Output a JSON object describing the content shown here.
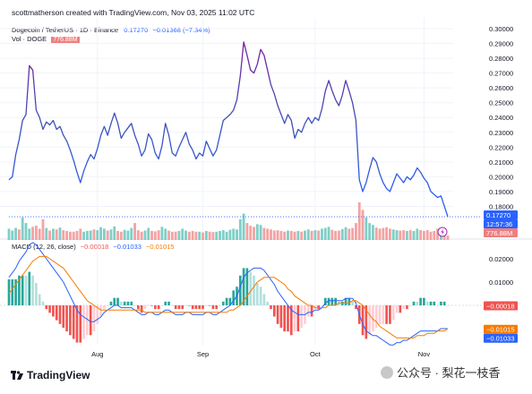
{
  "header": {
    "credit": "scottmatherson created with TradingView.com, Nov 03, 2025 11:02 UTC"
  },
  "symbol": {
    "name": "Dogecoin / TetherUS · 1D · Binance",
    "price": "0.17270",
    "change": "−0.01368 (−7.34%)"
  },
  "volume": {
    "label": "Vol · DOGE",
    "value": "776.88M"
  },
  "macd": {
    "label": "MACD (12, 26, close)",
    "hist": "−0.00018",
    "macd_value": "−0.01033",
    "signal_value": "−0.01015"
  },
  "price_axis": {
    "ticks": [
      "0.30000",
      "0.29000",
      "0.28000",
      "0.27000",
      "0.26000",
      "0.25000",
      "0.24000",
      "0.23000",
      "0.22000",
      "0.21000",
      "0.20000",
      "0.19000",
      "0.18000"
    ],
    "current_price_tag": "0.17270",
    "countdown_tag": "12:57:36",
    "volume_tag": "776.88M"
  },
  "macd_axis": {
    "ticks": [
      "0.02000",
      "0.01000"
    ],
    "hist_tag": "−0.00018",
    "signal_tag": "−0.01015",
    "macd_tag": "−0.01033"
  },
  "time_axis": {
    "labels": [
      "Aug",
      "Sep",
      "Oct",
      "Nov"
    ]
  },
  "branding": {
    "logo": "TradingView",
    "watermark": "公众号 · 梨花一枝香"
  },
  "colors": {
    "up": "#26a69a",
    "down": "#ef5350",
    "macd_line": "#2962ff",
    "signal_line": "#f57c00",
    "price_line": "#2962ff",
    "price_line_high": "#7b1fa2"
  },
  "chart_data": {
    "type": "line",
    "symbol": "DOGEUSDT",
    "interval": "1D",
    "price": [
      0.198,
      0.2,
      0.215,
      0.225,
      0.238,
      0.242,
      0.275,
      0.272,
      0.245,
      0.24,
      0.232,
      0.237,
      0.235,
      0.238,
      0.232,
      0.234,
      0.228,
      0.224,
      0.218,
      0.211,
      0.203,
      0.196,
      0.204,
      0.21,
      0.215,
      0.212,
      0.219,
      0.228,
      0.234,
      0.228,
      0.236,
      0.243,
      0.236,
      0.226,
      0.23,
      0.233,
      0.236,
      0.228,
      0.222,
      0.214,
      0.218,
      0.229,
      0.225,
      0.216,
      0.212,
      0.221,
      0.236,
      0.228,
      0.216,
      0.214,
      0.22,
      0.225,
      0.23,
      0.222,
      0.218,
      0.212,
      0.216,
      0.214,
      0.224,
      0.219,
      0.214,
      0.218,
      0.228,
      0.238,
      0.24,
      0.242,
      0.245,
      0.252,
      0.268,
      0.291,
      0.282,
      0.272,
      0.27,
      0.276,
      0.286,
      0.282,
      0.272,
      0.262,
      0.256,
      0.248,
      0.242,
      0.236,
      0.242,
      0.238,
      0.226,
      0.232,
      0.23,
      0.236,
      0.24,
      0.236,
      0.24,
      0.238,
      0.246,
      0.258,
      0.265,
      0.258,
      0.252,
      0.248,
      0.255,
      0.265,
      0.258,
      0.25,
      0.238,
      0.198,
      0.19,
      0.196,
      0.205,
      0.213,
      0.21,
      0.202,
      0.196,
      0.192,
      0.19,
      0.196,
      0.202,
      0.199,
      0.196,
      0.2,
      0.198,
      0.201,
      0.206,
      0.203,
      0.199,
      0.196,
      0.19,
      0.188,
      0.186,
      0.187,
      0.18,
      0.173
    ],
    "volume_direction": [
      1,
      1,
      1,
      0,
      1,
      1,
      1,
      0,
      0,
      0,
      0,
      1,
      0,
      1,
      0,
      1,
      0,
      0,
      0,
      0,
      0,
      0,
      1,
      1,
      1,
      0,
      1,
      1,
      1,
      0,
      1,
      1,
      0,
      0,
      1,
      1,
      1,
      0,
      0,
      0,
      1,
      1,
      0,
      0,
      0,
      1,
      1,
      0,
      0,
      0,
      1,
      1,
      1,
      0,
      0,
      0,
      1,
      0,
      1,
      0,
      0,
      1,
      1,
      1,
      1,
      1,
      1,
      1,
      1,
      1,
      0,
      0,
      0,
      1,
      1,
      0,
      0,
      0,
      0,
      0,
      0,
      0,
      1,
      0,
      0,
      1,
      0,
      1,
      1,
      0,
      1,
      0,
      1,
      1,
      1,
      0,
      0,
      0,
      1,
      1,
      0,
      0,
      0,
      0,
      0,
      1,
      1,
      1,
      0,
      0,
      0,
      0,
      0,
      1,
      1,
      0,
      0,
      1,
      0,
      1,
      1,
      0,
      0,
      0,
      0,
      0,
      0,
      1,
      0,
      0
    ],
    "volume_level": [
      0.3,
      0.25,
      0.32,
      0.28,
      0.6,
      0.45,
      0.3,
      0.35,
      0.38,
      0.3,
      0.55,
      0.32,
      0.25,
      0.3,
      0.28,
      0.33,
      0.26,
      0.24,
      0.22,
      0.22,
      0.24,
      0.3,
      0.22,
      0.24,
      0.25,
      0.28,
      0.26,
      0.34,
      0.3,
      0.25,
      0.28,
      0.36,
      0.24,
      0.22,
      0.27,
      0.25,
      0.32,
      0.45,
      0.26,
      0.22,
      0.25,
      0.32,
      0.24,
      0.23,
      0.26,
      0.35,
      0.3,
      0.25,
      0.22,
      0.22,
      0.24,
      0.3,
      0.25,
      0.22,
      0.24,
      0.22,
      0.22,
      0.2,
      0.24,
      0.22,
      0.21,
      0.22,
      0.24,
      0.26,
      0.22,
      0.27,
      0.3,
      0.28,
      0.55,
      0.7,
      0.45,
      0.38,
      0.35,
      0.42,
      0.4,
      0.32,
      0.3,
      0.28,
      0.25,
      0.26,
      0.24,
      0.22,
      0.25,
      0.24,
      0.22,
      0.24,
      0.22,
      0.25,
      0.28,
      0.24,
      0.26,
      0.25,
      0.3,
      0.32,
      0.35,
      0.27,
      0.24,
      0.25,
      0.29,
      0.34,
      0.3,
      0.32,
      0.45,
      1.0,
      0.8,
      0.6,
      0.45,
      0.4,
      0.33,
      0.3,
      0.32,
      0.34,
      0.3,
      0.28,
      0.26,
      0.25,
      0.26,
      0.24,
      0.26,
      0.24,
      0.3,
      0.26,
      0.24,
      0.26,
      0.22,
      0.24,
      0.3,
      0.28,
      0.18,
      0.12
    ],
    "macd": [
      0.012,
      0.014,
      0.016,
      0.019,
      0.021,
      0.023,
      0.026,
      0.027,
      0.026,
      0.024,
      0.022,
      0.02,
      0.018,
      0.016,
      0.014,
      0.012,
      0.01,
      0.007,
      0.004,
      0.001,
      -0.002,
      -0.004,
      -0.005,
      -0.006,
      -0.007,
      -0.007,
      -0.006,
      -0.005,
      -0.003,
      -0.002,
      -0.001,
      0.0,
      0.0,
      -0.001,
      -0.001,
      -0.001,
      -0.001,
      -0.002,
      -0.003,
      -0.004,
      -0.004,
      -0.003,
      -0.003,
      -0.004,
      -0.004,
      -0.003,
      -0.002,
      -0.002,
      -0.003,
      -0.004,
      -0.004,
      -0.004,
      -0.003,
      -0.003,
      -0.004,
      -0.004,
      -0.004,
      -0.004,
      -0.003,
      -0.003,
      -0.004,
      -0.004,
      -0.003,
      -0.002,
      -0.001,
      0.0,
      0.002,
      0.004,
      0.008,
      0.012,
      0.014,
      0.015,
      0.016,
      0.016,
      0.016,
      0.015,
      0.013,
      0.011,
      0.009,
      0.006,
      0.004,
      0.002,
      0.0,
      -0.002,
      -0.003,
      -0.004,
      -0.004,
      -0.004,
      -0.003,
      -0.003,
      -0.002,
      -0.002,
      -0.001,
      0.001,
      0.002,
      0.002,
      0.002,
      0.002,
      0.002,
      0.003,
      0.003,
      0.003,
      0.001,
      -0.004,
      -0.008,
      -0.011,
      -0.012,
      -0.013,
      -0.013,
      -0.014,
      -0.015,
      -0.016,
      -0.017,
      -0.017,
      -0.016,
      -0.016,
      -0.015,
      -0.015,
      -0.014,
      -0.013,
      -0.012,
      -0.011,
      -0.011,
      -0.011,
      -0.011,
      -0.011,
      -0.011,
      -0.01,
      -0.01,
      -0.01
    ],
    "signal": [
      0.005,
      0.007,
      0.009,
      0.011,
      0.013,
      0.015,
      0.017,
      0.019,
      0.02,
      0.021,
      0.021,
      0.021,
      0.02,
      0.019,
      0.018,
      0.017,
      0.016,
      0.014,
      0.012,
      0.01,
      0.008,
      0.006,
      0.004,
      0.002,
      0.001,
      0.0,
      -0.001,
      -0.002,
      -0.002,
      -0.002,
      -0.002,
      -0.002,
      -0.002,
      -0.002,
      -0.002,
      -0.002,
      -0.002,
      -0.002,
      -0.002,
      -0.002,
      -0.003,
      -0.003,
      -0.003,
      -0.003,
      -0.003,
      -0.003,
      -0.003,
      -0.003,
      -0.003,
      -0.003,
      -0.003,
      -0.003,
      -0.003,
      -0.003,
      -0.003,
      -0.003,
      -0.003,
      -0.003,
      -0.003,
      -0.003,
      -0.003,
      -0.003,
      -0.003,
      -0.003,
      -0.003,
      -0.002,
      -0.002,
      -0.001,
      0.0,
      0.002,
      0.004,
      0.006,
      0.008,
      0.01,
      0.011,
      0.012,
      0.012,
      0.012,
      0.012,
      0.011,
      0.01,
      0.009,
      0.007,
      0.006,
      0.004,
      0.003,
      0.002,
      0.001,
      0.0,
      0.0,
      -0.001,
      -0.001,
      -0.001,
      -0.001,
      0.0,
      0.0,
      0.0,
      0.001,
      0.001,
      0.001,
      0.001,
      0.002,
      0.002,
      0.001,
      0.0,
      -0.002,
      -0.004,
      -0.006,
      -0.007,
      -0.009,
      -0.01,
      -0.011,
      -0.012,
      -0.013,
      -0.014,
      -0.014,
      -0.014,
      -0.014,
      -0.014,
      -0.014,
      -0.013,
      -0.013,
      -0.013,
      -0.012,
      -0.012,
      -0.012,
      -0.011,
      -0.011,
      -0.011,
      -0.01
    ]
  }
}
